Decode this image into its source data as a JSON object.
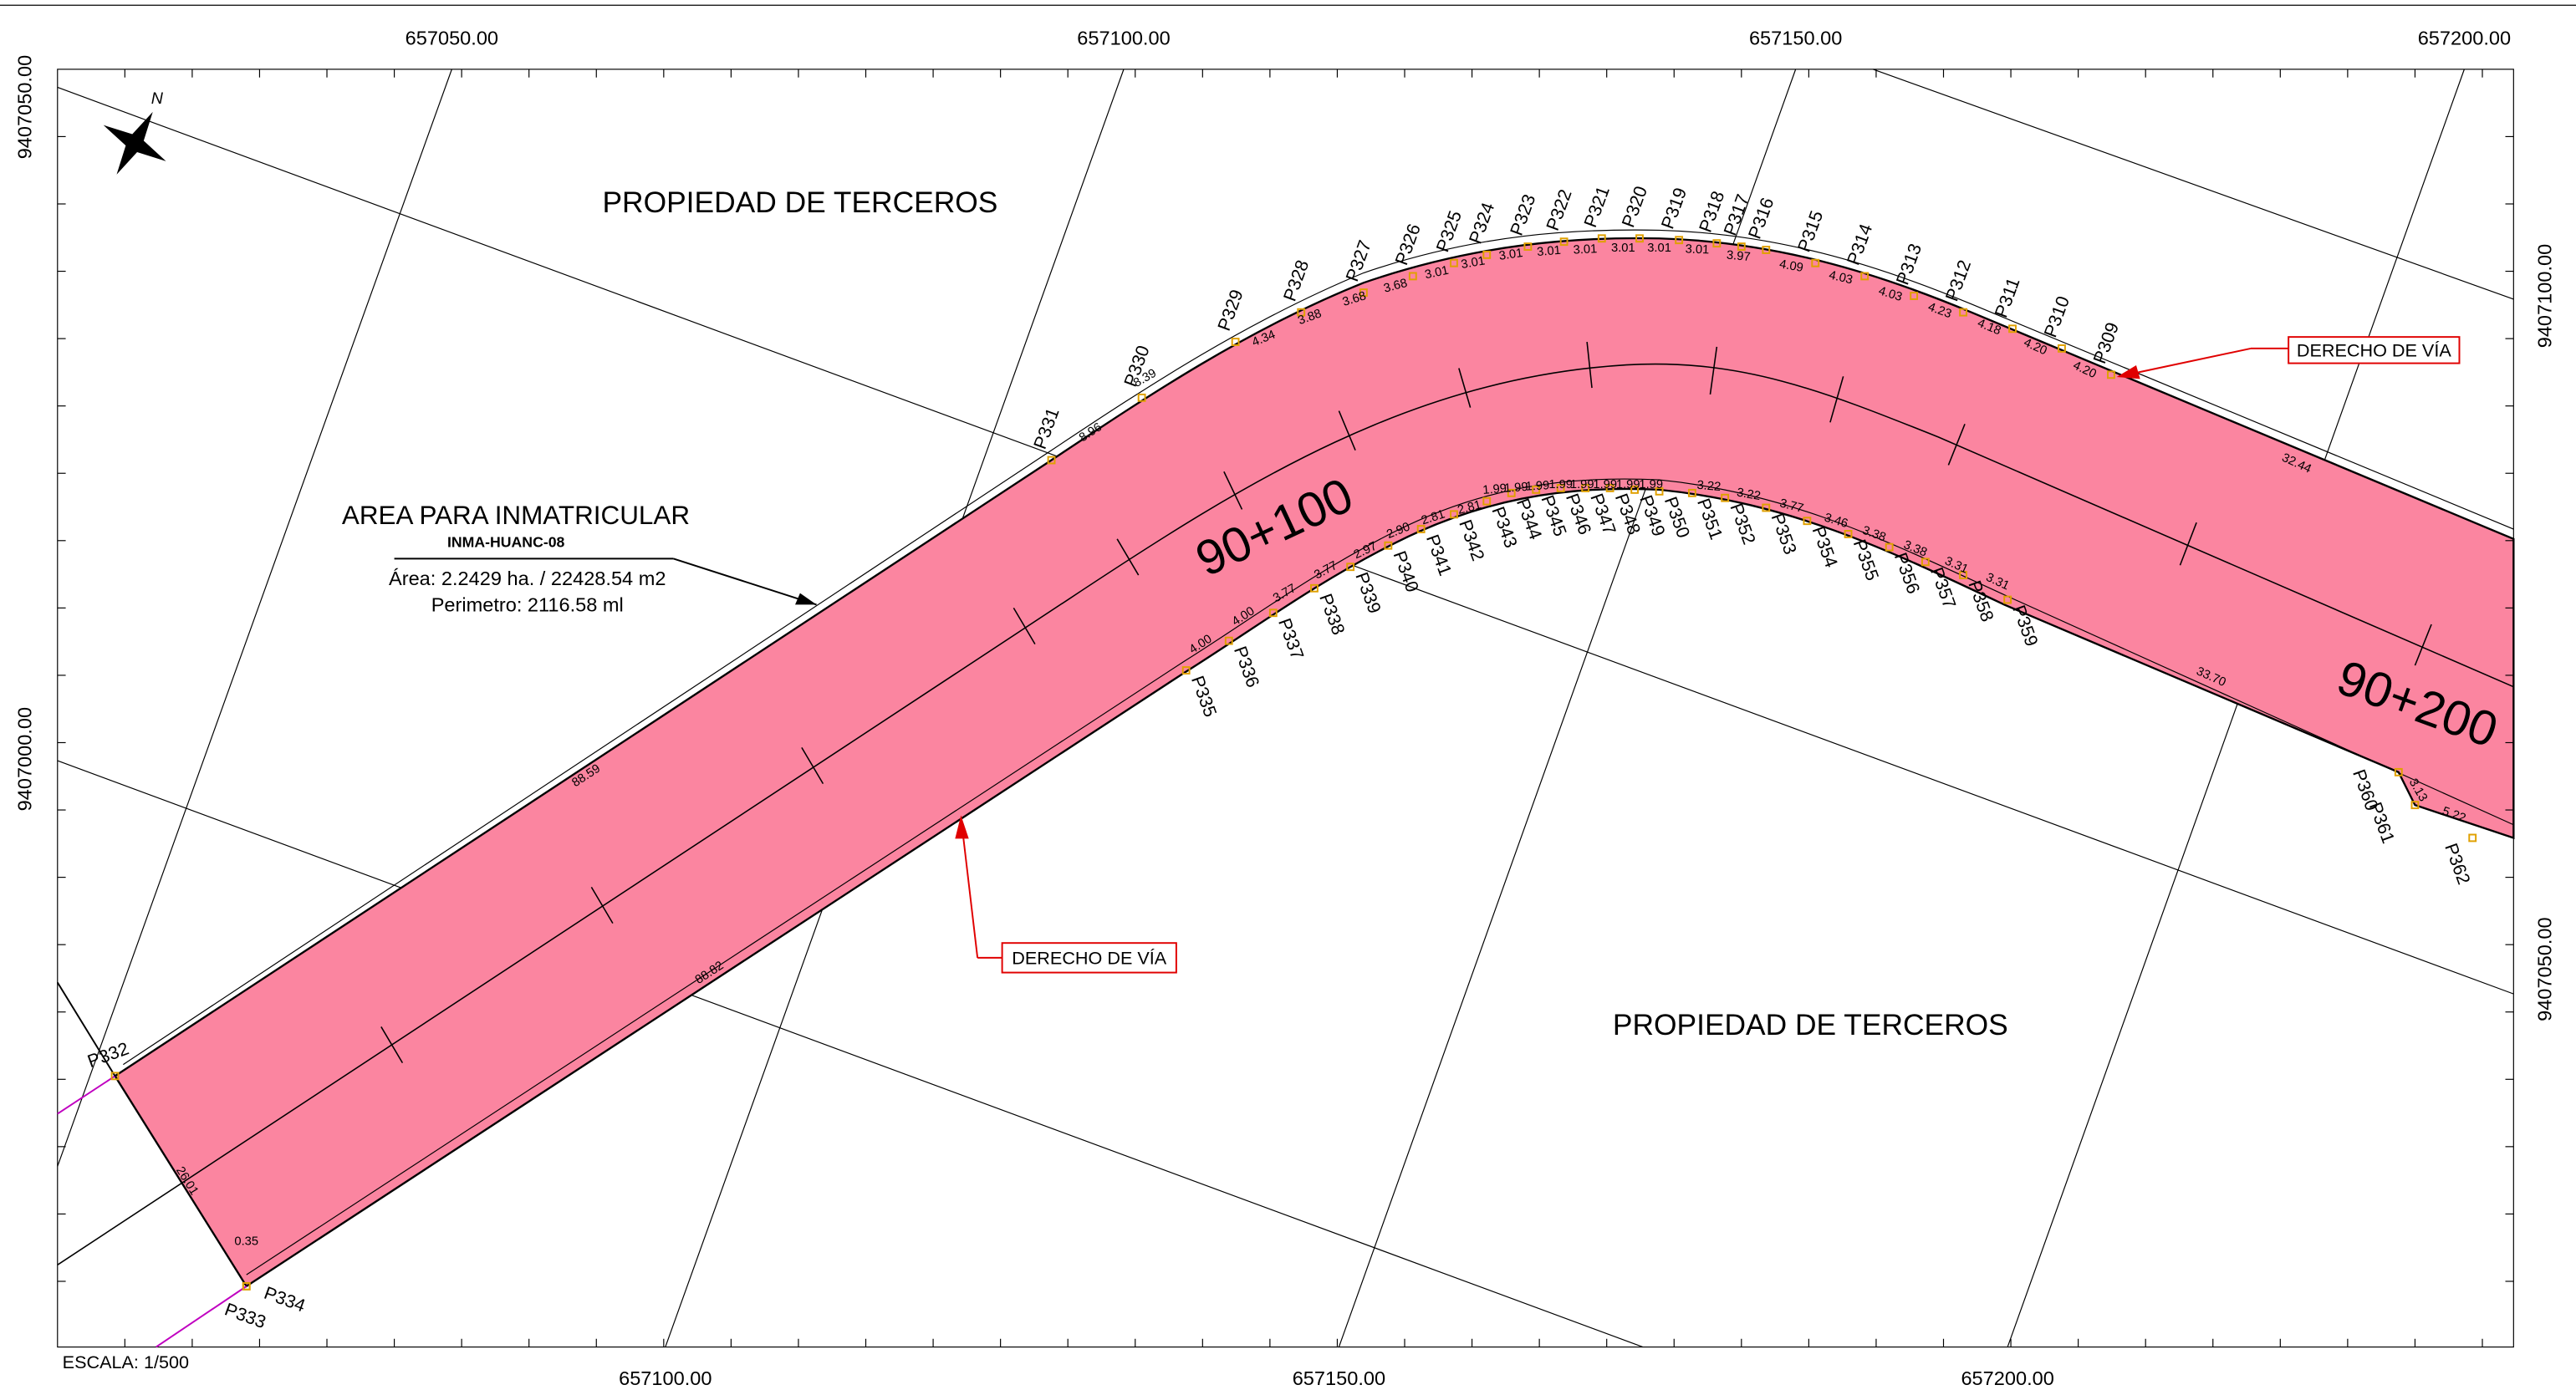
{
  "coords": {
    "top": [
      "657050.00",
      "657100.00",
      "657150.00",
      "657200.00"
    ],
    "bottom": [
      "657100.00",
      "657150.00",
      "657200.00"
    ],
    "left": [
      "9407050.00",
      "9407000.00"
    ],
    "right": [
      "9407100.00",
      "9407050.00"
    ]
  },
  "labels": {
    "north_area": "PROPIEDAD DE TERCEROS",
    "south_area": "PROPIEDAD DE TERCEROS",
    "area_title": "AREA PARA INMATRICULAR",
    "area_code": "INMA-HUANC-08",
    "area": "Área: 2.2429 ha. / 22428.54 m2",
    "perimeter": "Perimetro: 2116.58 ml",
    "row_top": "DERECHO DE VÍA",
    "row_bottom": "DERECHO DE VÍA",
    "station_1": "90+100",
    "station_2": "90+200",
    "scale": "ESCALA: 1/500"
  },
  "points": {
    "top": [
      "P331",
      "P330",
      "P329",
      "P328",
      "P327",
      "P326",
      "P325",
      "P324",
      "P323",
      "P322",
      "P321",
      "P320",
      "P319",
      "P318",
      "P317",
      "P316",
      "P315",
      "P314",
      "P313",
      "P312",
      "P311",
      "P310",
      "P309"
    ],
    "bottom": [
      "P335",
      "P336",
      "P337",
      "P338",
      "P339",
      "P340",
      "P341",
      "P342",
      "P343",
      "P344",
      "P345",
      "P346",
      "P347",
      "P348",
      "P349",
      "P350",
      "P351",
      "P352",
      "P353",
      "P354",
      "P355",
      "P356",
      "P357",
      "P358",
      "P359"
    ],
    "other": [
      "P332",
      "P333",
      "P334",
      "P360",
      "P361",
      "P362"
    ]
  },
  "distances": {
    "top": [
      "8.96",
      "8.39",
      "4.34",
      "3.88",
      "3.68",
      "3.68",
      "3.01",
      "3.01",
      "3.01",
      "3.01",
      "3.01",
      "3.01",
      "3.01",
      "3.01",
      "3.97",
      "4.09",
      "4.03",
      "4.03",
      "4.23",
      "4.18",
      "4.20",
      "4.20",
      "32.44"
    ],
    "bottom": [
      "4.00",
      "4.00",
      "3.77",
      "3.77",
      "2.97",
      "2.90",
      "2.81",
      "2.81",
      "1.99",
      "1.99",
      "1.99",
      "1.99",
      "1.99",
      "1.99",
      "1.99",
      "1.99",
      "3.22",
      "3.22",
      "3.77",
      "3.46",
      "3.38",
      "3.38",
      "3.31",
      "3.31",
      "33.70"
    ],
    "other": [
      "88.59",
      "88.82",
      "26.01",
      "0.35",
      "3.13",
      "5.22"
    ]
  }
}
